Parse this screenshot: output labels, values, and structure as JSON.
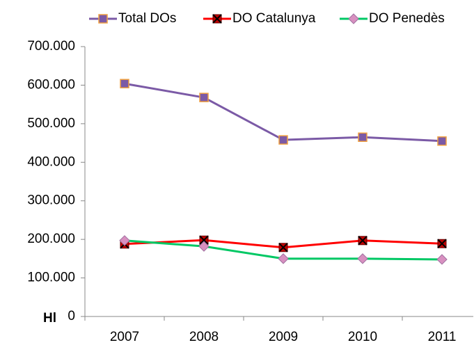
{
  "chart_data": {
    "type": "line",
    "ylabel": "Hl",
    "categories": [
      "2007",
      "2008",
      "2009",
      "2010",
      "2011"
    ],
    "series": [
      {
        "name": "Total DOs",
        "color": "#7b5aa6",
        "values": [
          604000,
          568000,
          458000,
          465000,
          455000
        ]
      },
      {
        "name": "DO Catalunya",
        "color": "#ff0000",
        "values": [
          188000,
          198000,
          179000,
          197000,
          189000
        ]
      },
      {
        "name": "DO Penedès",
        "color": "#00c864",
        "values": [
          197000,
          182000,
          150000,
          150000,
          148000
        ]
      }
    ],
    "ylim": [
      0,
      700000
    ],
    "yticks": [
      0,
      {
        "value": 100000,
        "label": "100.000"
      },
      {
        "value": 200000,
        "label": "200.000"
      },
      {
        "value": 300000,
        "label": "300.000"
      },
      {
        "value": 400000,
        "label": "400.000"
      },
      {
        "value": 500000,
        "label": "500.000"
      },
      {
        "value": 600000,
        "label": "600.000"
      },
      {
        "value": 700000,
        "label": "700.000"
      }
    ],
    "legend": "top",
    "grid": false
  }
}
